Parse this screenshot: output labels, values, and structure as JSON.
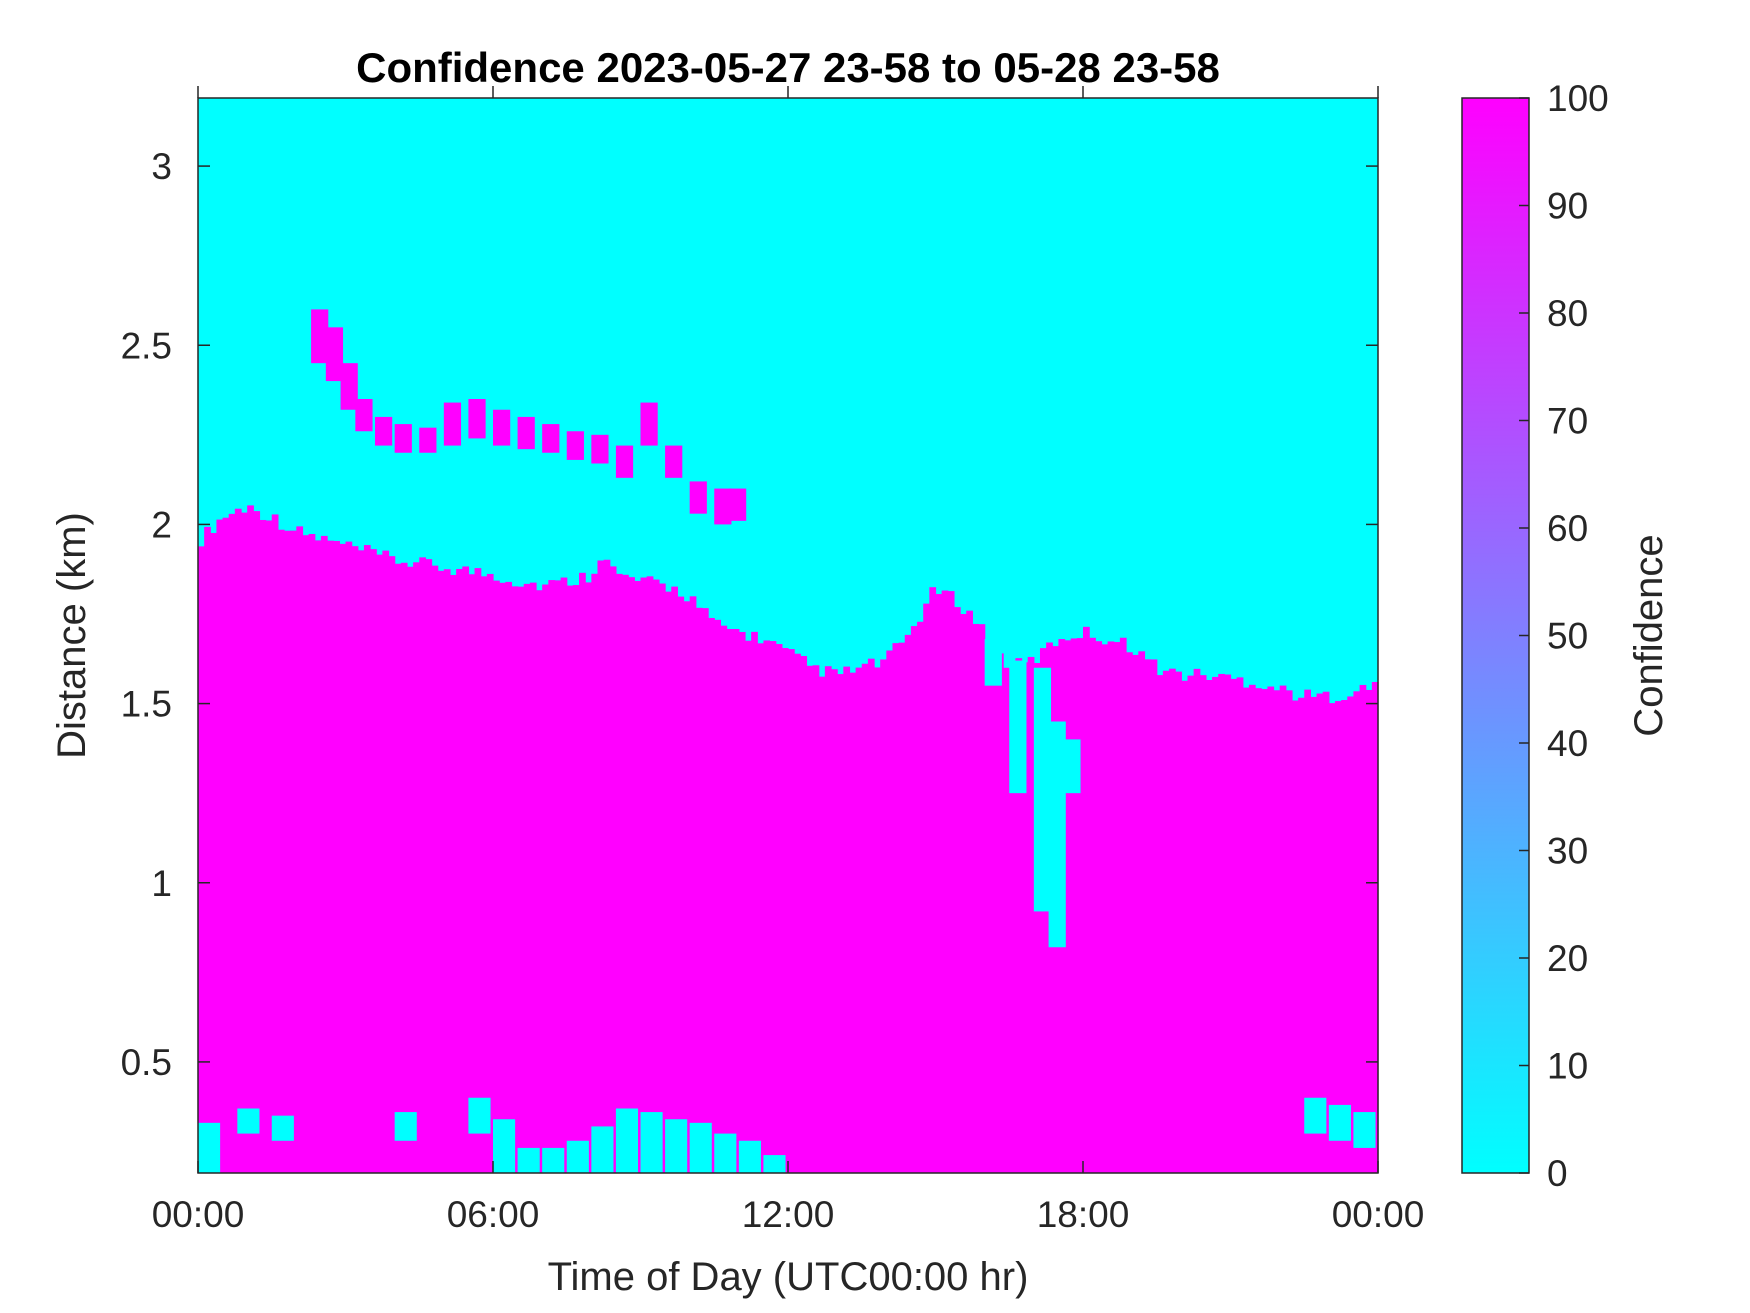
{
  "chart_data": {
    "type": "heatmap",
    "title": "Confidence 2023-05-27 23-58 to 05-28 23-58",
    "xlabel": "Time of Day (UTC00:00 hr)",
    "ylabel": "Distance (km)",
    "xlim_hours": [
      0,
      24
    ],
    "ylim_km": [
      0.19,
      3.19
    ],
    "x_tick_hours": [
      0,
      6,
      12,
      18,
      24
    ],
    "x_tick_labels": [
      "00:00",
      "06:00",
      "12:00",
      "18:00",
      "00:00"
    ],
    "y_ticks": [
      0.5,
      1,
      1.5,
      2,
      2.5,
      3
    ],
    "y_tick_labels": [
      "0.5",
      "1",
      "1.5",
      "2",
      "2.5",
      "3"
    ],
    "colorbar": {
      "label": "Confidence",
      "min": 0,
      "max": 100,
      "ticks": [
        0,
        10,
        20,
        30,
        40,
        50,
        60,
        70,
        80,
        90,
        100
      ],
      "tick_labels": [
        "0",
        "10",
        "20",
        "30",
        "40",
        "50",
        "60",
        "70",
        "80",
        "90",
        "100"
      ],
      "color_low": "#00ffff",
      "color_high": "#ff00ff"
    },
    "background_value": 0,
    "high_value": 100,
    "boundary_layer_top_km": [
      [
        0.0,
        1.95
      ],
      [
        0.5,
        2.02
      ],
      [
        1.0,
        2.05
      ],
      [
        1.5,
        2.02
      ],
      [
        2.0,
        1.98
      ],
      [
        2.5,
        1.96
      ],
      [
        3.0,
        1.94
      ],
      [
        3.5,
        1.92
      ],
      [
        4.0,
        1.9
      ],
      [
        4.5,
        1.89
      ],
      [
        5.0,
        1.88
      ],
      [
        5.5,
        1.87
      ],
      [
        6.0,
        1.86
      ],
      [
        6.5,
        1.84
      ],
      [
        7.0,
        1.83
      ],
      [
        7.5,
        1.84
      ],
      [
        8.0,
        1.86
      ],
      [
        8.2,
        1.92
      ],
      [
        8.5,
        1.86
      ],
      [
        9.0,
        1.84
      ],
      [
        9.5,
        1.83
      ],
      [
        10.0,
        1.8
      ],
      [
        10.5,
        1.72
      ],
      [
        11.0,
        1.7
      ],
      [
        11.5,
        1.68
      ],
      [
        12.0,
        1.64
      ],
      [
        12.5,
        1.6
      ],
      [
        13.0,
        1.58
      ],
      [
        13.5,
        1.6
      ],
      [
        14.0,
        1.62
      ],
      [
        14.5,
        1.7
      ],
      [
        15.0,
        1.82
      ],
      [
        15.5,
        1.78
      ],
      [
        16.0,
        1.7
      ],
      [
        16.5,
        1.6
      ],
      [
        17.0,
        1.62
      ],
      [
        17.5,
        1.68
      ],
      [
        18.0,
        1.7
      ],
      [
        18.5,
        1.68
      ],
      [
        19.0,
        1.66
      ],
      [
        19.5,
        1.6
      ],
      [
        20.0,
        1.58
      ],
      [
        20.5,
        1.58
      ],
      [
        21.0,
        1.57
      ],
      [
        21.5,
        1.56
      ],
      [
        22.0,
        1.54
      ],
      [
        22.5,
        1.52
      ],
      [
        23.0,
        1.52
      ],
      [
        23.5,
        1.53
      ],
      [
        24.0,
        1.55
      ]
    ],
    "elevated_layer_km": [
      [
        2.3,
        2.6,
        2.45
      ],
      [
        2.6,
        2.55,
        2.4
      ],
      [
        2.9,
        2.45,
        2.32
      ],
      [
        3.2,
        2.35,
        2.26
      ],
      [
        3.6,
        2.3,
        2.22
      ],
      [
        4.0,
        2.28,
        2.2
      ],
      [
        4.5,
        2.27,
        2.2
      ],
      [
        5.0,
        2.34,
        2.22
      ],
      [
        5.5,
        2.35,
        2.24
      ],
      [
        6.0,
        2.32,
        2.22
      ],
      [
        6.5,
        2.3,
        2.21
      ],
      [
        7.0,
        2.28,
        2.2
      ],
      [
        7.5,
        2.26,
        2.18
      ],
      [
        8.0,
        2.25,
        2.17
      ],
      [
        8.5,
        2.22,
        2.13
      ],
      [
        9.0,
        2.34,
        2.22
      ],
      [
        9.5,
        2.22,
        2.13
      ],
      [
        10.0,
        2.12,
        2.03
      ],
      [
        10.5,
        2.1,
        2.0
      ],
      [
        10.8,
        2.1,
        2.01
      ]
    ],
    "clear_gaps_km": [
      [
        16.0,
        1.55,
        1.68
      ],
      [
        16.5,
        1.25,
        1.62
      ],
      [
        17.0,
        0.92,
        1.6
      ],
      [
        17.3,
        0.82,
        1.45
      ],
      [
        17.6,
        1.25,
        1.4
      ]
    ],
    "surface_clear_patches_km": [
      [
        0.0,
        0.19,
        0.33
      ],
      [
        0.8,
        0.3,
        0.37
      ],
      [
        1.5,
        0.28,
        0.35
      ],
      [
        4.0,
        0.28,
        0.36
      ],
      [
        5.5,
        0.3,
        0.4
      ],
      [
        6.0,
        0.19,
        0.34
      ],
      [
        6.5,
        0.19,
        0.26
      ],
      [
        7.0,
        0.19,
        0.26
      ],
      [
        7.5,
        0.19,
        0.28
      ],
      [
        8.0,
        0.19,
        0.32
      ],
      [
        8.5,
        0.19,
        0.37
      ],
      [
        9.0,
        0.19,
        0.36
      ],
      [
        9.5,
        0.19,
        0.34
      ],
      [
        10.0,
        0.19,
        0.33
      ],
      [
        10.5,
        0.19,
        0.3
      ],
      [
        11.0,
        0.19,
        0.28
      ],
      [
        11.5,
        0.19,
        0.24
      ],
      [
        22.5,
        0.3,
        0.4
      ],
      [
        23.0,
        0.28,
        0.38
      ],
      [
        23.5,
        0.26,
        0.36
      ]
    ]
  }
}
